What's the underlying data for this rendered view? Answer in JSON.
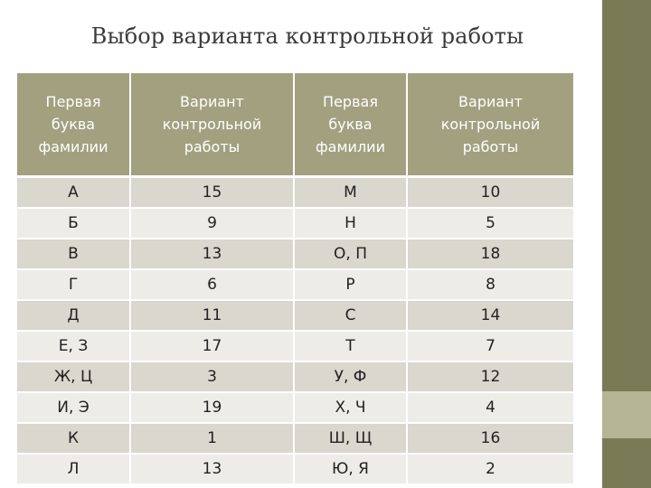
{
  "title": "Выбор варианта контрольной работы",
  "colors": {
    "header_bg": "#a3a080",
    "row_odd": "#d9d7ce",
    "row_even": "#edece7",
    "side_bar": "#7b7a57",
    "side_bar_accent": "#b5b494"
  },
  "table": {
    "headers": [
      "Первая\nбуква\nфамилии",
      "Вариант\nконтрольной\nработы",
      "Первая\nбуква\nфамилии",
      "Вариант\nконтрольной\nработы"
    ],
    "rows": [
      [
        "А",
        "15",
        "М",
        "10"
      ],
      [
        "Б",
        "9",
        "Н",
        "5"
      ],
      [
        "В",
        "13",
        "О, П",
        "18"
      ],
      [
        "Г",
        "6",
        "Р",
        "8"
      ],
      [
        "Д",
        "11",
        "С",
        "14"
      ],
      [
        "Е, З",
        "17",
        "Т",
        "7"
      ],
      [
        "Ж, Ц",
        "3",
        "У, Ф",
        "12"
      ],
      [
        "И, Э",
        "19",
        "Х, Ч",
        "4"
      ],
      [
        "К",
        "1",
        "Ш, Щ",
        "16"
      ],
      [
        "Л",
        "13",
        "Ю, Я",
        "2"
      ]
    ]
  }
}
